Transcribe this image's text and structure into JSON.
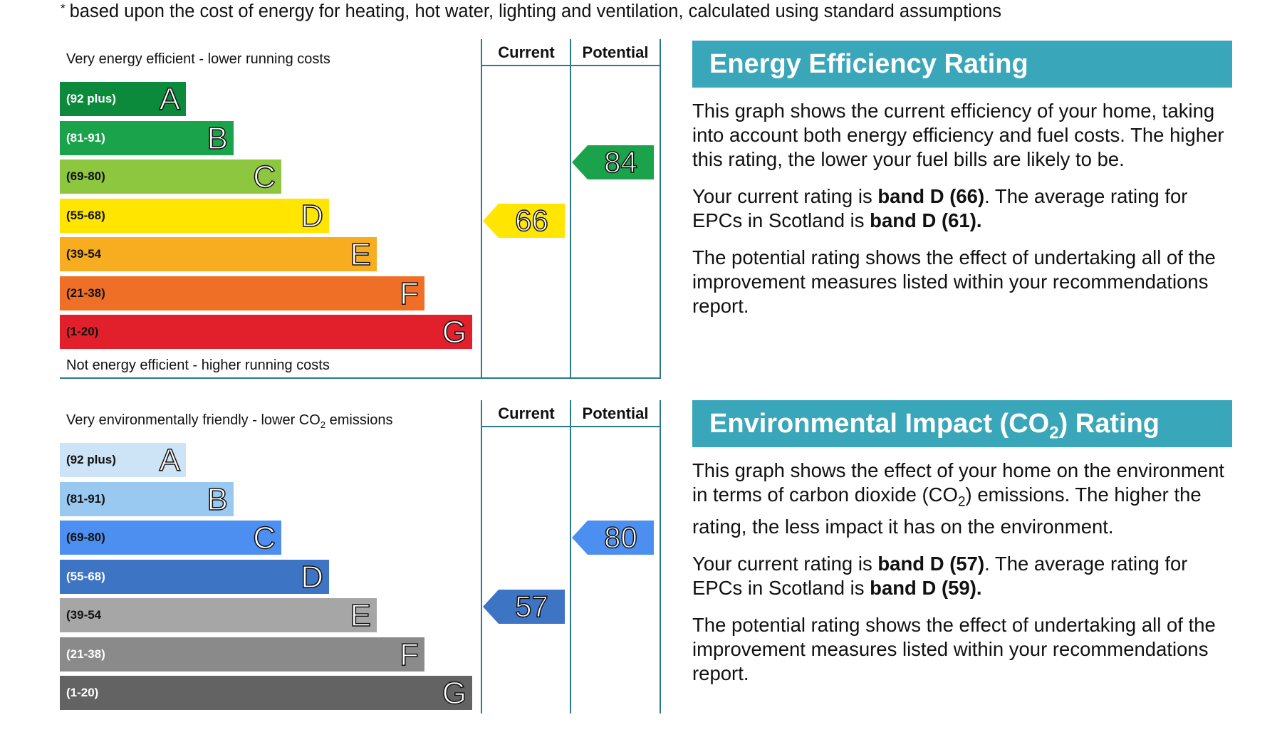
{
  "footnote": {
    "marker": "*",
    "text": "based upon the cost of energy for heating, hot water, lighting and ventilation, calculated using standard assumptions"
  },
  "chart_data": [
    {
      "type": "bar",
      "name": "energy-efficiency-rating",
      "top_label": "Very energy efficient - lower running costs",
      "bottom_label": "Not energy efficient - higher running costs",
      "column_headers": [
        "Current",
        "Potential"
      ],
      "bands": [
        {
          "letter": "A",
          "range": "(92 plus)",
          "color": "#0b8a3c",
          "range_color": "#ffffff"
        },
        {
          "letter": "B",
          "range": "(81-91)",
          "color": "#1aa34a",
          "range_color": "#ffffff"
        },
        {
          "letter": "C",
          "range": "(69-80)",
          "color": "#8dc63f",
          "range_color": "#111111"
        },
        {
          "letter": "D",
          "range": "(55-68)",
          "color": "#ffe500",
          "range_color": "#111111"
        },
        {
          "letter": "E",
          "range": "(39-54",
          "color": "#f7ad1f",
          "range_color": "#111111"
        },
        {
          "letter": "F",
          "range": "(21-38)",
          "color": "#ee6f25",
          "range_color": "#111111"
        },
        {
          "letter": "G",
          "range": "(1-20)",
          "color": "#e2202c",
          "range_color": "#111111"
        }
      ],
      "current": {
        "value": 66,
        "band": "D",
        "color": "#ffe500"
      },
      "potential": {
        "value": 84,
        "band": "B",
        "color": "#1aa34a"
      }
    },
    {
      "type": "bar",
      "name": "environmental-impact-rating",
      "top_label_main": "Very environmentally friendly - lower CO",
      "top_label_sub": "2",
      "top_label_end": " emissions",
      "column_headers": [
        "Current",
        "Potential"
      ],
      "bands": [
        {
          "letter": "A",
          "range": "(92 plus)",
          "color": "#cce4f6",
          "range_color": "#111111"
        },
        {
          "letter": "B",
          "range": "(81-91)",
          "color": "#99c8f1",
          "range_color": "#111111"
        },
        {
          "letter": "C",
          "range": "(69-80)",
          "color": "#4d8ff0",
          "range_color": "#111111"
        },
        {
          "letter": "D",
          "range": "(55-68)",
          "color": "#3d74c4",
          "range_color": "#ffffff"
        },
        {
          "letter": "E",
          "range": "(39-54",
          "color": "#a6a6a6",
          "range_color": "#111111"
        },
        {
          "letter": "F",
          "range": "(21-38)",
          "color": "#8a8a8a",
          "range_color": "#ffffff"
        },
        {
          "letter": "G",
          "range": "(1-20)",
          "color": "#636363",
          "range_color": "#ffffff"
        }
      ],
      "current": {
        "value": 57,
        "band": "D",
        "color": "#3d74c4"
      },
      "potential": {
        "value": 80,
        "band": "C",
        "color": "#4d8ff0"
      }
    }
  ],
  "ee_panel": {
    "title": "Energy Efficiency Rating",
    "p1": "This graph shows the current efficiency of your home, taking into account both energy efficiency and fuel costs. The higher this rating, the lower your fuel bills are likely to be.",
    "p2_a": "Your current rating is ",
    "p2_b": "band D (66)",
    "p2_c": ". The average rating for EPCs in Scotland is ",
    "p2_d": "band D (61).",
    "p3": "The potential rating shows the effect of undertaking all of the improvement measures listed within your recommendations report."
  },
  "ei_panel": {
    "title_a": "Environmental Impact (CO",
    "title_sub": "2",
    "title_b": ") Rating",
    "p1_a": "This graph shows the effect of your home on the environment in terms of carbon dioxide (CO",
    "p1_sub": "2",
    "p1_b": ") emissions. The higher the rating, the less impact it has on the environment.",
    "p2_a": "Your current rating is ",
    "p2_b": "band D (57)",
    "p2_c": ". The average rating for EPCs in Scotland is ",
    "p2_d": "band D (59).",
    "p3": "The potential rating shows the effect of undertaking all of the improvement measures listed within your recommendations report."
  }
}
